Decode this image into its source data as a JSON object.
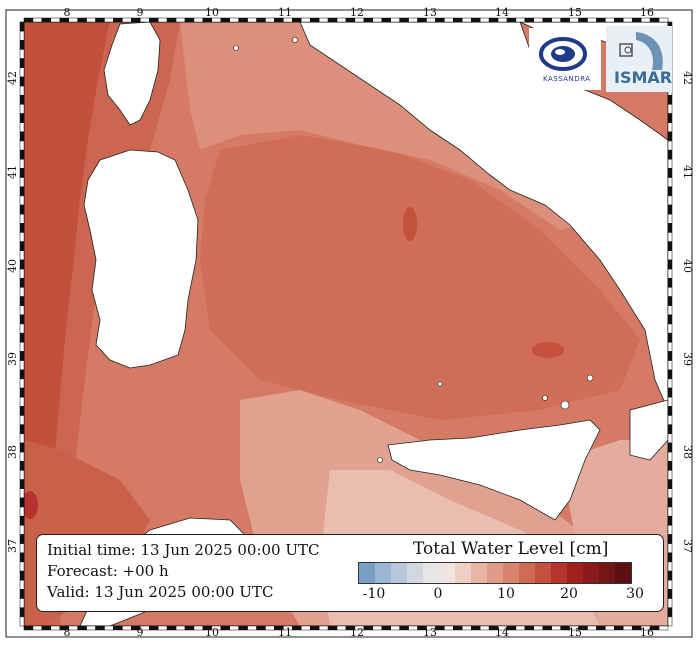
{
  "map": {
    "lon_ticks": [
      "8",
      "9",
      "10",
      "11",
      "12",
      "13",
      "14",
      "15",
      "16"
    ],
    "lat_ticks": [
      "42",
      "41",
      "40",
      "39",
      "38",
      "37"
    ]
  },
  "info": {
    "initial_time": "Initial time: 13 Jun 2025 00:00 UTC",
    "forecast": "Forecast: +00 h",
    "valid": "Valid: 13 Jun 2025 00:00 UTC"
  },
  "legend": {
    "title": "Total Water Level [cm]",
    "ticks": [
      "-10",
      "0",
      "10",
      "20",
      "30"
    ],
    "colors": [
      "#7a9fc6",
      "#9bb6d3",
      "#b8c8da",
      "#d2d8e0",
      "#e6e6e6",
      "#f0e4e0",
      "#f0d0c6",
      "#e8b4a4",
      "#e09b88",
      "#d9826e",
      "#cf6a55",
      "#c4503e",
      "#b5332c",
      "#a0201f",
      "#8a1a1c",
      "#731417",
      "#5c0f12"
    ]
  },
  "logos": {
    "kassandra": "KASSANDRA",
    "ismar": "ISMAR"
  },
  "colors": {
    "sea_deep": "#c45a45",
    "sea_mid": "#d8816b",
    "sea_light": "#e2a08f",
    "sea_faint": "#ecc5b9",
    "land": "#ffffff"
  }
}
